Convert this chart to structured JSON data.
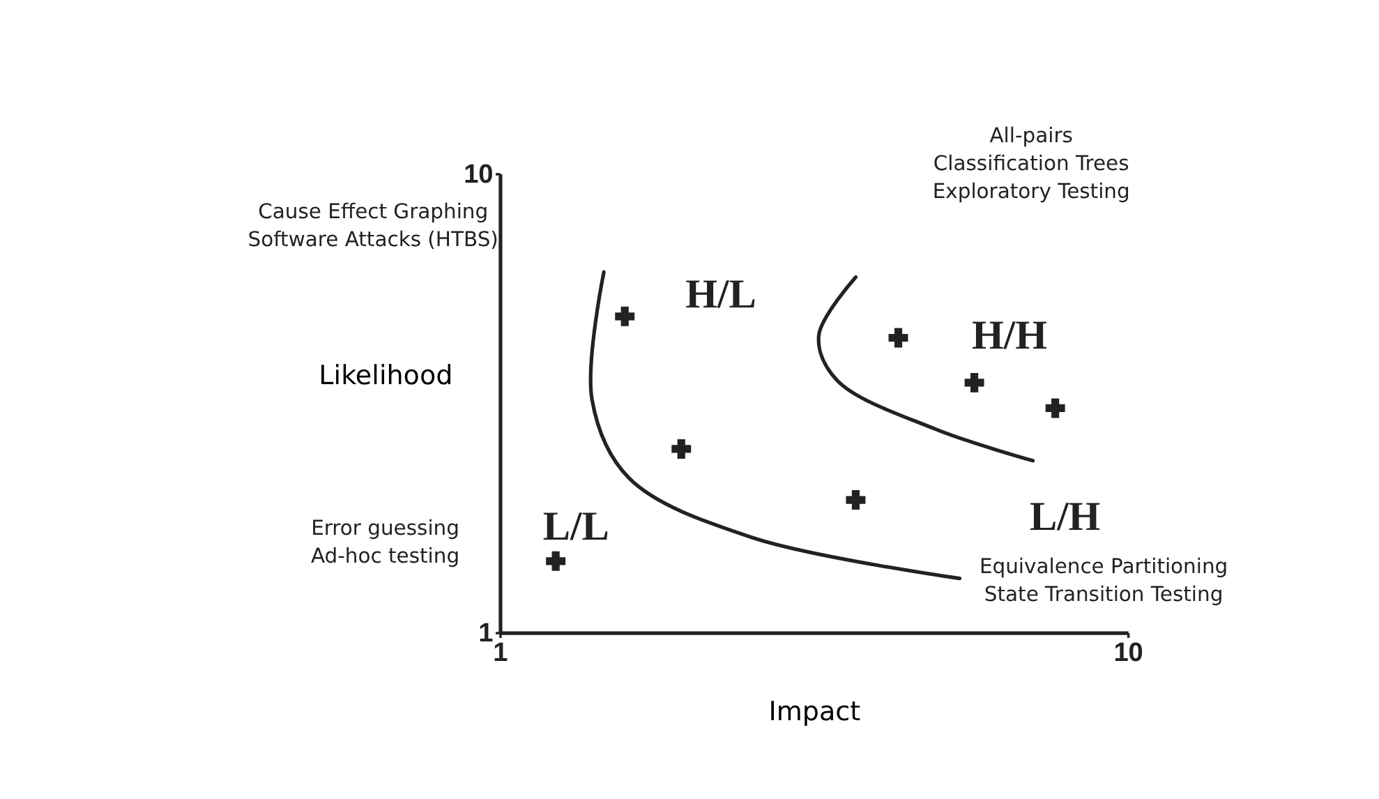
{
  "chart_data": {
    "type": "scatter",
    "xlabel": "Impact",
    "ylabel": "Likelihood",
    "xlim": [
      1,
      10
    ],
    "ylim": [
      1,
      10
    ],
    "xticks": [
      1,
      10
    ],
    "yticks": [
      1,
      10
    ],
    "grid": false,
    "series": [
      {
        "marker": "cross",
        "color": "#222222",
        "x": [
          2.79,
          6.71,
          7.8,
          8.96,
          3.6,
          6.1,
          1.8
        ],
        "values": [
          7.2,
          6.78,
          5.9,
          5.4,
          4.6,
          3.6,
          2.4
        ]
      },
      {
        "type": "line",
        "color": "#222222",
        "x": [
          2.49,
          2.32,
          2.85,
          4.6,
          7.59
        ],
        "values": [
          8.07,
          5.57,
          4.03,
          2.87,
          2.06
        ]
      },
      {
        "type": "line",
        "color": "#222222",
        "x": [
          6.1,
          5.57,
          5.83,
          7.24,
          8.64
        ],
        "values": [
          7.97,
          6.82,
          5.95,
          4.99,
          4.37
        ]
      }
    ],
    "annotations": [
      "H/L",
      "H/H",
      "L/L",
      "L/H",
      "Cause Effect Graphing\nSoftware Attacks (HTBS)",
      "All-pairs\nClassification Trees\nExploratory Testing",
      "Error guessing\nAd-hoc testing",
      "Equivalence Partitioning\nState Transition Testing"
    ]
  }
}
